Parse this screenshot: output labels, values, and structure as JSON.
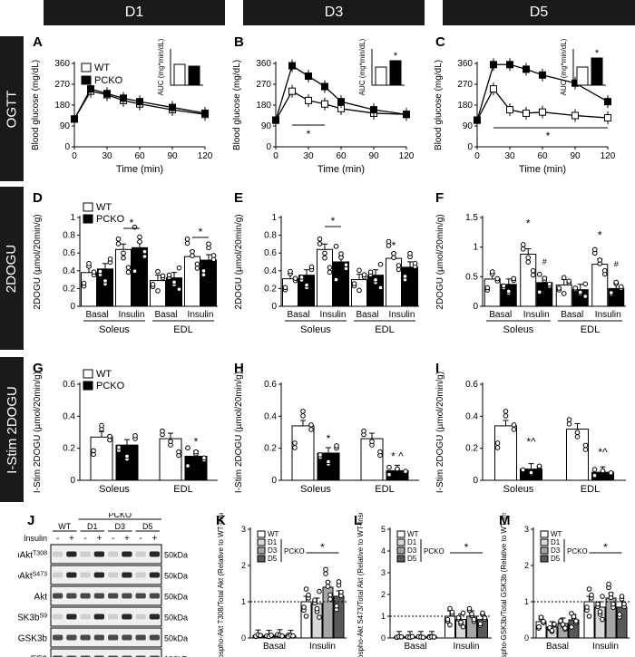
{
  "headers": {
    "d1": "D1",
    "d3": "D3",
    "d5": "D5"
  },
  "row_labels": {
    "ogtt": "OGTT",
    "dogu": "2DOGU",
    "istim": "I-Stim 2DOGU"
  },
  "colors": {
    "wt": "#ffffff",
    "pcko": "#000000",
    "d1": "#d9d9d9",
    "d3": "#a6a6a6",
    "d5": "#595959"
  },
  "panel_labels": {
    "A": "A",
    "B": "B",
    "C": "C",
    "D": "D",
    "E": "E",
    "F": "F",
    "G": "G",
    "H": "H",
    "I": "I",
    "J": "J",
    "K": "K",
    "L": "L",
    "M": "M"
  },
  "legend": {
    "wt": "WT",
    "pcko": "PCKO"
  },
  "ogtt": {
    "ylabel": "Blood glucose (mg/dL)",
    "xlabel": "Time (min)",
    "auc_label": "AUC (mg*min/dL)",
    "star": "*",
    "xticks": [
      0,
      30,
      60,
      90,
      120
    ],
    "yticks": [
      0,
      90,
      180,
      270,
      360
    ]
  },
  "dogu_ylabel": "2DOGU (µmol/20min/g)",
  "istim_ylabel": "I-Stim 2DOGU (µmol/20min/g)",
  "groups": {
    "basal": "Basal",
    "insulin": "Insulin",
    "soleus": "Soleus",
    "edl": "EDL"
  },
  "blot": {
    "pcko": "PCKO",
    "wt": "WT",
    "d1": "D1",
    "d3": "D3",
    "d5": "D5",
    "insulin": "Insulin",
    "minus": "-",
    "plus": "+",
    "rows": [
      "pAkt",
      "pAkt",
      "Akt",
      "GSK3b",
      "GSK3b",
      "eEF2"
    ],
    "sups": [
      "T308",
      "S473",
      "",
      "S9",
      "",
      ""
    ],
    "kda": [
      "50kDa",
      "50kDa",
      "50kDa",
      "50kDa",
      "50kDa",
      "100kDa"
    ]
  },
  "bottom": {
    "k_ylabel": "phospho-Akt T308/Total Akt (Relative to WT-Insulin)",
    "l_ylabel": "phospho-Akt S473/Total Akt (Relative to WT-Insulin)",
    "m_ylabel": "phospho-GSK3b/Total GSK3b (Relative to WT-Insulin)",
    "legend": [
      "WT",
      "D1",
      "D3",
      "D5"
    ],
    "pcko": "PCKO"
  },
  "chart_data": [
    {
      "panel": "A",
      "type": "line",
      "x": [
        0,
        15,
        30,
        45,
        60,
        90,
        120
      ],
      "series": [
        {
          "name": "WT",
          "values": [
            120,
            240,
            225,
            200,
            185,
            160,
            140
          ]
        },
        {
          "name": "PCKO",
          "values": [
            120,
            250,
            230,
            210,
            195,
            170,
            145
          ]
        }
      ],
      "ylim": [
        0,
        360
      ],
      "xlim": [
        0,
        120
      ],
      "inset": {
        "type": "bar",
        "values": [
          23000,
          21000
        ],
        "ylim": [
          0,
          40000
        ]
      }
    },
    {
      "panel": "B",
      "type": "line",
      "x": [
        0,
        15,
        30,
        45,
        60,
        90,
        120
      ],
      "series": [
        {
          "name": "WT",
          "values": [
            115,
            240,
            200,
            185,
            165,
            145,
            140
          ]
        },
        {
          "name": "PCKO",
          "values": [
            115,
            350,
            305,
            260,
            195,
            160,
            140
          ]
        }
      ],
      "ylim": [
        0,
        360
      ],
      "xlim": [
        0,
        120
      ],
      "inset": {
        "type": "bar",
        "values": [
          20000,
          27000
        ],
        "ylim": [
          0,
          40000
        ]
      }
    },
    {
      "panel": "C",
      "type": "line",
      "x": [
        0,
        15,
        30,
        45,
        60,
        90,
        120
      ],
      "series": [
        {
          "name": "WT",
          "values": [
            115,
            250,
            160,
            145,
            150,
            135,
            125
          ]
        },
        {
          "name": "PCKO",
          "values": [
            115,
            355,
            355,
            335,
            310,
            275,
            195
          ]
        }
      ],
      "ylim": [
        0,
        360
      ],
      "xlim": [
        0,
        120
      ],
      "inset": {
        "type": "bar",
        "values": [
          20000,
          30000
        ],
        "ylim": [
          0,
          40000
        ]
      }
    },
    {
      "panel": "D",
      "type": "bar",
      "ylim": [
        0,
        1.0
      ],
      "yticks": [
        0,
        0.2,
        0.4,
        0.6,
        0.8,
        1.0
      ],
      "values": [
        0.38,
        0.42,
        0.64,
        0.66,
        0.29,
        0.32,
        0.56,
        0.52
      ]
    },
    {
      "panel": "E",
      "type": "bar",
      "ylim": [
        0,
        1.0
      ],
      "yticks": [
        0,
        0.2,
        0.4,
        0.6,
        0.8,
        1.0
      ],
      "values": [
        0.31,
        0.35,
        0.64,
        0.5,
        0.3,
        0.35,
        0.54,
        0.44
      ]
    },
    {
      "panel": "F",
      "type": "bar",
      "ylim": [
        0,
        1.5
      ],
      "yticks": [
        0,
        0.5,
        1.0,
        1.5
      ],
      "values": [
        0.46,
        0.37,
        0.88,
        0.4,
        0.36,
        0.28,
        0.71,
        0.3
      ]
    },
    {
      "panel": "G",
      "type": "bar",
      "ylim": [
        0,
        0.6
      ],
      "yticks": [
        0,
        0.2,
        0.4,
        0.6
      ],
      "values": [
        0.27,
        0.22,
        0.26,
        0.15
      ]
    },
    {
      "panel": "H",
      "type": "bar",
      "ylim": [
        0,
        0.6
      ],
      "yticks": [
        0,
        0.2,
        0.4,
        0.6
      ],
      "values": [
        0.34,
        0.17,
        0.26,
        0.06
      ]
    },
    {
      "panel": "I",
      "type": "bar",
      "ylim": [
        0,
        0.6
      ],
      "yticks": [
        0,
        0.2,
        0.4,
        0.6
      ],
      "values": [
        0.34,
        0.07,
        0.32,
        0.05
      ]
    },
    {
      "panel": "K",
      "type": "bar",
      "ylim": [
        0,
        3
      ],
      "yticks": [
        0,
        1,
        2,
        3
      ],
      "values": [
        0.07,
        0.06,
        0.08,
        0.06,
        1.0,
        0.95,
        1.4,
        1.15
      ]
    },
    {
      "panel": "L",
      "type": "bar",
      "ylim": [
        0,
        5
      ],
      "yticks": [
        0,
        1,
        2,
        3,
        4,
        5
      ],
      "values": [
        0.05,
        0.05,
        0.05,
        0.05,
        1.0,
        0.85,
        1.0,
        0.85
      ]
    },
    {
      "panel": "M",
      "type": "bar",
      "ylim": [
        0,
        3
      ],
      "yticks": [
        0,
        1,
        2,
        3
      ],
      "values": [
        0.45,
        0.3,
        0.4,
        0.5,
        1.0,
        0.85,
        1.1,
        0.85
      ]
    }
  ]
}
